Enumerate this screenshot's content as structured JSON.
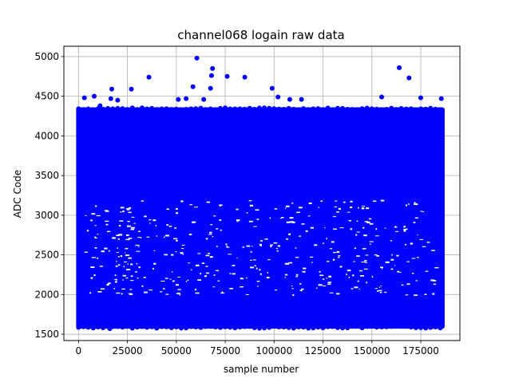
{
  "chart_data": {
    "type": "scatter",
    "title": "channel068 logain raw data",
    "xlabel": "sample number",
    "ylabel": "ADC Code",
    "xlim": [
      -7500,
      195000
    ],
    "ylim": [
      1420,
      5130
    ],
    "xticks": [
      0,
      25000,
      50000,
      75000,
      100000,
      125000,
      150000,
      175000
    ],
    "yticks": [
      1500,
      2000,
      2500,
      3000,
      3500,
      4000,
      4500,
      5000
    ],
    "grid": true,
    "marker_color": "#0000ff",
    "dense_band": {
      "x_range": [
        0,
        186000
      ],
      "y_range": [
        1600,
        4330
      ]
    },
    "outliers": {
      "x": [
        3000,
        8000,
        11000,
        16500,
        17000,
        20000,
        27000,
        36000,
        51000,
        55000,
        58500,
        60500,
        64000,
        67500,
        68000,
        68500,
        76000,
        85000,
        99000,
        102000,
        108000,
        114000,
        155000,
        164000,
        169000,
        175000,
        185500,
        16000
      ],
      "y": [
        4480,
        4500,
        4380,
        4470,
        4590,
        4450,
        4590,
        4740,
        4460,
        4470,
        4620,
        4980,
        4460,
        4600,
        4760,
        4850,
        4750,
        4740,
        4600,
        4490,
        4460,
        4460,
        4490,
        4860,
        4730,
        4480,
        4470,
        1570
      ]
    }
  }
}
